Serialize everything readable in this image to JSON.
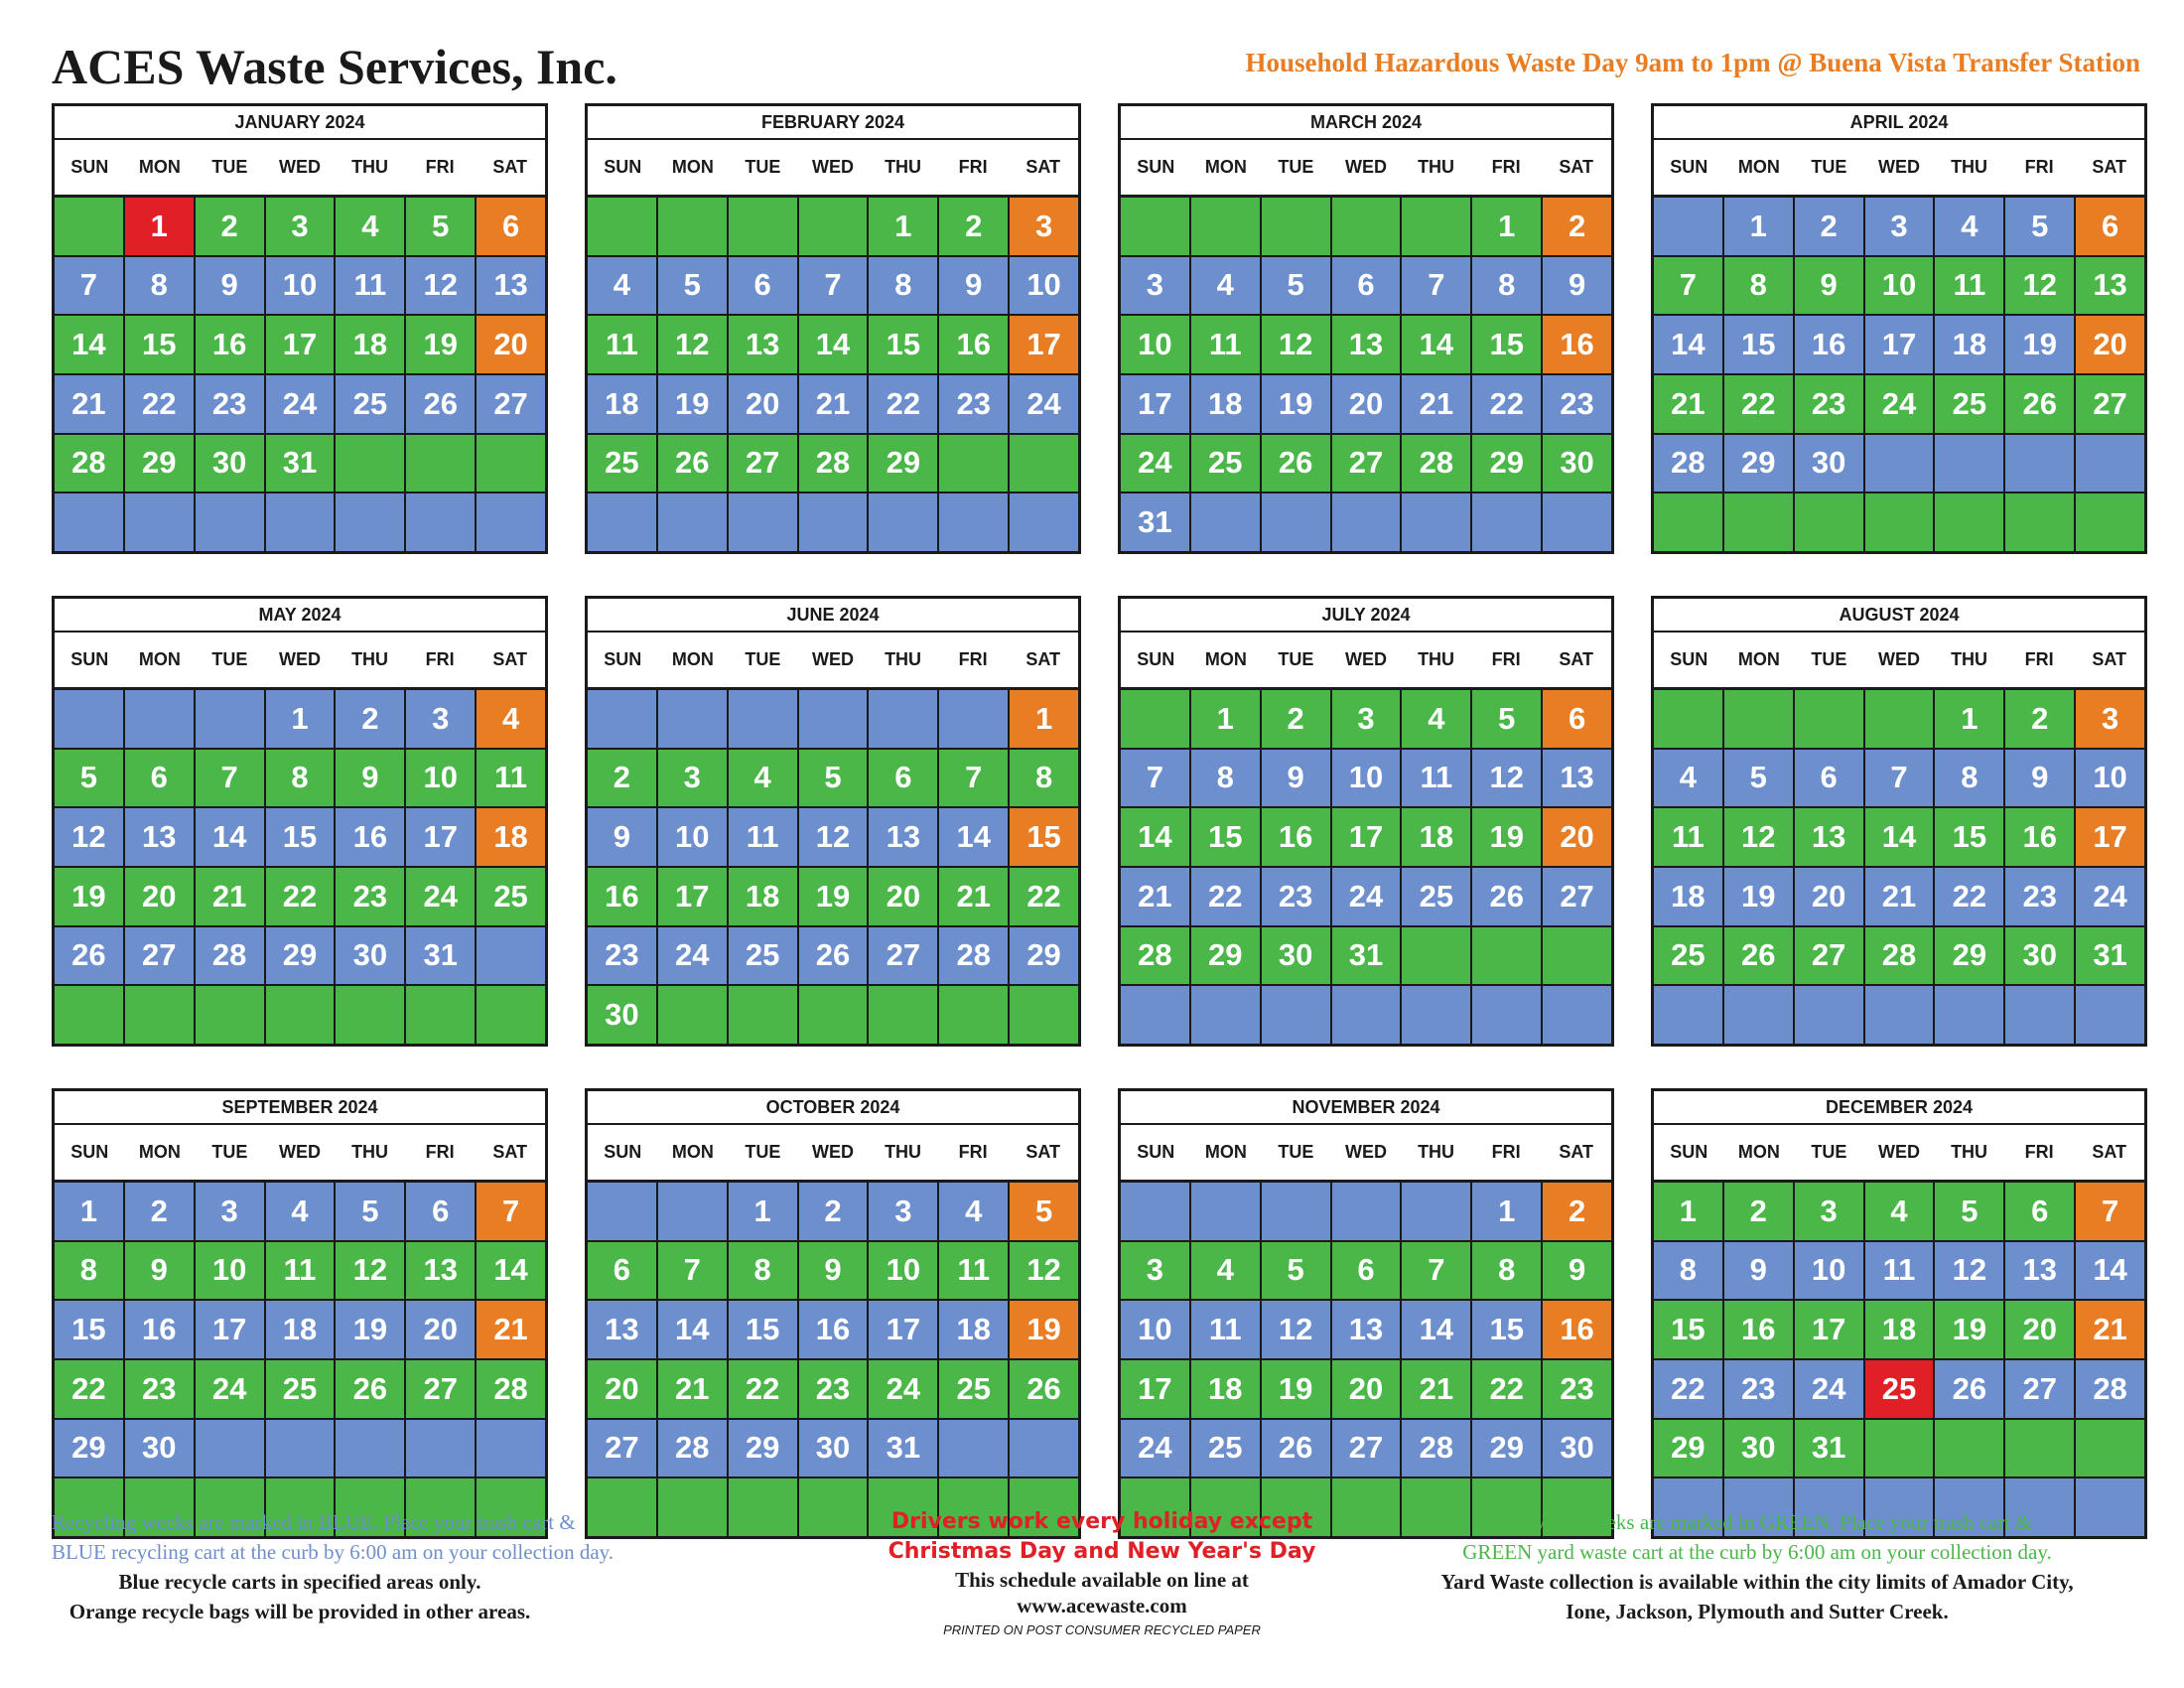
{
  "header": {
    "company": "ACES Waste Services, Inc.",
    "hhw_notice": "Household Hazardous Waste Day 9am to 1pm @ Buena Vista Transfer Station"
  },
  "weekdays": [
    "SUN",
    "MON",
    "TUE",
    "WED",
    "THU",
    "FRI",
    "SAT"
  ],
  "colors": {
    "green": "#4ab748",
    "blue": "#6e8fce",
    "orange": "#e87d23",
    "red": "#e11f26"
  },
  "legend_codes": {
    "g": "yard waste week",
    "b": "recycling week",
    "o": "household hazardous waste day",
    "r": "holiday - no service"
  },
  "months": [
    {
      "name": "JANUARY 2024",
      "start": 1,
      "days": 31,
      "firstWeek": "g",
      "orange": [
        6,
        20
      ],
      "red": [
        1
      ]
    },
    {
      "name": "FEBRUARY 2024",
      "start": 4,
      "days": 29,
      "firstWeek": "g",
      "orange": [
        3,
        17
      ],
      "red": []
    },
    {
      "name": "MARCH 2024",
      "start": 5,
      "days": 31,
      "firstWeek": "g",
      "orange": [
        2,
        16
      ],
      "red": []
    },
    {
      "name": "APRIL 2024",
      "start": 1,
      "days": 30,
      "firstWeek": "b",
      "orange": [
        6,
        20
      ],
      "red": []
    },
    {
      "name": "MAY 2024",
      "start": 3,
      "days": 31,
      "firstWeek": "b",
      "orange": [
        4,
        18
      ],
      "red": []
    },
    {
      "name": "JUNE 2024",
      "start": 6,
      "days": 30,
      "firstWeek": "b",
      "orange": [
        1,
        15
      ],
      "red": []
    },
    {
      "name": "JULY 2024",
      "start": 1,
      "days": 31,
      "firstWeek": "g",
      "orange": [
        6,
        20
      ],
      "red": []
    },
    {
      "name": "AUGUST 2024",
      "start": 4,
      "days": 31,
      "firstWeek": "g",
      "orange": [
        3,
        17
      ],
      "red": []
    },
    {
      "name": "SEPTEMBER 2024",
      "start": 0,
      "days": 30,
      "firstWeek": "b",
      "orange": [
        7,
        21
      ],
      "red": []
    },
    {
      "name": "OCTOBER 2024",
      "start": 2,
      "days": 31,
      "firstWeek": "b",
      "orange": [
        5,
        19
      ],
      "red": []
    },
    {
      "name": "NOVEMBER 2024",
      "start": 5,
      "days": 30,
      "firstWeek": "b",
      "orange": [
        2,
        16
      ],
      "red": []
    },
    {
      "name": "DECEMBER 2024",
      "start": 0,
      "days": 31,
      "firstWeek": "g",
      "orange": [
        7,
        21
      ],
      "red": [
        25
      ]
    }
  ],
  "footer": {
    "left_line1": "Recycling weeks are marked in BLUE. Place your trash cart &",
    "left_line2": "BLUE recycling cart at the curb by 6:00 am on your collection day.",
    "left_line3": "Blue recycle carts in specified areas only.",
    "left_line4": "Orange recycle bags will be provided in other areas.",
    "center_line1": "Drivers work every holiday except",
    "center_line2": "Christmas Day and New Year's Day",
    "center_line3": "This schedule available on line at",
    "center_line4": "www.acewaste.com",
    "center_line5": "PRINTED ON POST CONSUMER RECYCLED PAPER",
    "right_line1": "Yard Waste weeks are marked in GREEN. Place your trash cart &",
    "right_line2": "GREEN yard waste cart at the curb by 6:00 am on your collection day.",
    "right_line3": "Yard Waste collection is available within the city limits of Amador City,",
    "right_line4": "Ione, Jackson, Plymouth and Sutter Creek."
  }
}
